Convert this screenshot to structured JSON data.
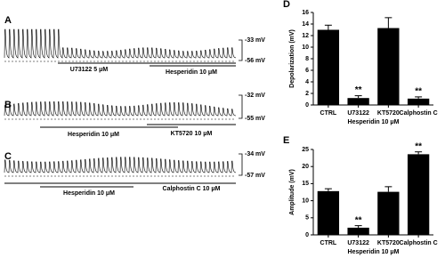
{
  "traces": [
    {
      "label": "A",
      "scale_top": "-33 mV",
      "scale_bottom": "-56 mV",
      "drugs": [
        "U73122 5 μM",
        "Hesperidin 10 μM"
      ]
    },
    {
      "label": "B",
      "scale_top": "-32 mV",
      "scale_bottom": "-55 mV",
      "drugs": [
        "Hesperidin 10 μM",
        "KT5720 10 μM"
      ]
    },
    {
      "label": "C",
      "scale_top": "-34 mV",
      "scale_bottom": "-57 mV",
      "drugs": [
        "Hesperidin 10 μM",
        "Calphostin C 10 μM"
      ]
    }
  ],
  "chart_data": [
    {
      "type": "bar",
      "panel": "D",
      "ylabel": "Depolarization (mV)",
      "xlabel": "Hesperidin 10 μM",
      "categories": [
        "CTRL",
        "U73122",
        "KT5720",
        "Calphostin C"
      ],
      "values": [
        13,
        1.2,
        13.3,
        1.1
      ],
      "errors": [
        0.8,
        0.4,
        1.8,
        0.3
      ],
      "significance": [
        null,
        "**",
        null,
        "**"
      ],
      "color": "#000000",
      "ylim": [
        0,
        16
      ],
      "yticks": [
        0,
        2,
        4,
        6,
        8,
        10,
        12,
        14,
        16
      ]
    },
    {
      "type": "bar",
      "panel": "E",
      "ylabel": "Amplitude (mV)",
      "xlabel": "Hesperidin 10 μM",
      "categories": [
        "CTRL",
        "U73122",
        "KT5720",
        "Calphostin C"
      ],
      "values": [
        12.8,
        2.1,
        12.6,
        23.6
      ],
      "errors": [
        0.7,
        0.6,
        1.5,
        0.7
      ],
      "significance": [
        null,
        "**",
        null,
        "**"
      ],
      "color": "#000000",
      "ylim": [
        0,
        25
      ],
      "yticks": [
        0,
        5,
        10,
        15,
        20,
        25
      ]
    }
  ]
}
